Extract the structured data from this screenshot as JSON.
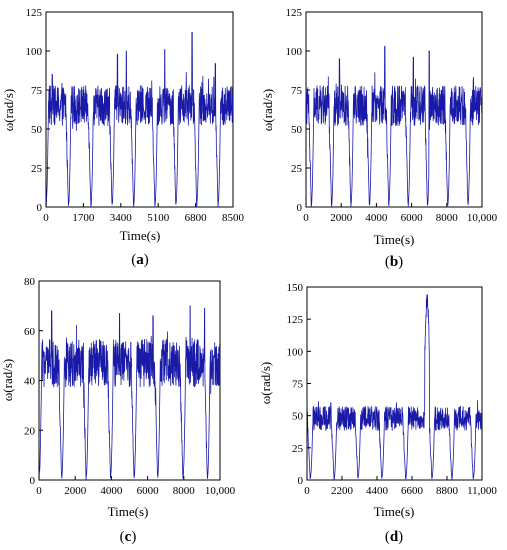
{
  "chart_data": [
    {
      "type": "line",
      "panel_label": "a",
      "xlabel": "Time(s)",
      "ylabel": "ω(rad/s)",
      "xlim": [
        0,
        8500
      ],
      "ylim": [
        0,
        125
      ],
      "xticks": [
        "0",
        "1700",
        "3400",
        "5100",
        "6800",
        "8500"
      ],
      "yticks": [
        "0",
        "25",
        "50",
        "75",
        "100",
        "125"
      ],
      "grid": false,
      "series_color": "#1a1aa8",
      "series": [
        {
          "cycle_starts": [
            0,
            1020,
            2040,
            3000,
            3980,
            4950,
            5900,
            6850,
            7820
          ],
          "cycle_length": 1000,
          "baseline": 65,
          "noise": 8,
          "ramp_up": 120,
          "spikes": [
            [
              5400,
              101
            ],
            [
              6640,
              112
            ],
            [
              3650,
              100
            ]
          ],
          "peaks": [
            [
              280,
              85
            ],
            [
              3250,
              98
            ],
            [
              7700,
              92
            ]
          ]
        }
      ]
    },
    {
      "type": "line",
      "panel_label": "b",
      "xlabel": "Time(s)",
      "ylabel": "ω(rad/s)",
      "xlim": [
        0,
        10000
      ],
      "ylim": [
        0,
        125
      ],
      "xticks": [
        "0",
        "2000",
        "4000",
        "6000",
        "8000",
        "10,000"
      ],
      "yticks": [
        "0",
        "25",
        "50",
        "75",
        "100",
        "125"
      ],
      "grid": false,
      "series_color": "#1a1aa8",
      "series": [
        {
          "cycle_starts": [
            300,
            1450,
            2550,
            3600,
            4700,
            5800,
            6900,
            8050,
            9200
          ],
          "cycle_length": 1100,
          "baseline": 65,
          "noise": 8,
          "ramp_up": 150,
          "spikes": [
            [
              4480,
              103
            ],
            [
              7000,
              100
            ]
          ],
          "peaks": [
            [
              1900,
              95
            ],
            [
              6100,
              96
            ]
          ]
        }
      ]
    },
    {
      "type": "line",
      "panel_label": "c",
      "xlabel": "Time(s)",
      "ylabel": "ω(rad/s)",
      "xlim": [
        0,
        10000
      ],
      "ylim": [
        0,
        80
      ],
      "xticks": [
        "0",
        "2000",
        "4000",
        "6000",
        "8000",
        "10,000"
      ],
      "yticks": [
        "0",
        "20",
        "40",
        "60",
        "80"
      ],
      "grid": false,
      "series_color": "#1a1aa8",
      "series": [
        {
          "cycle_starts": [
            0,
            1250,
            2600,
            3950,
            5250,
            6550,
            7950,
            9300
          ],
          "cycle_length": 1330,
          "baseline": 47,
          "noise": 6,
          "ramp_up": 160,
          "spikes": [
            [
              8350,
              70
            ],
            [
              9150,
              69
            ],
            [
              4450,
              67
            ]
          ],
          "peaks": [
            [
              700,
              68
            ],
            [
              6300,
              66
            ]
          ]
        }
      ]
    },
    {
      "type": "line",
      "panel_label": "d",
      "xlabel": "Time(s)",
      "ylabel": "ω(rad/s)",
      "xlim": [
        0,
        11000
      ],
      "ylim": [
        0,
        150
      ],
      "xticks": [
        "0",
        "2200",
        "4400",
        "6600",
        "8800",
        "11,000"
      ],
      "yticks": [
        "0",
        "25",
        "50",
        "75",
        "100",
        "125",
        "150"
      ],
      "grid": false,
      "series_color": "#1a1aa8",
      "series": [
        {
          "cycle_starts": [
            200,
            1700,
            3200,
            4700,
            6200,
            7850,
            9100,
            10450
          ],
          "cycle_length": 1400,
          "baseline": 48,
          "noise": 6,
          "ramp_up": 180,
          "spikes": [
            [
              1500,
              60
            ]
          ],
          "peaks": [],
          "burst": [
            7400,
            7700,
            140
          ]
        }
      ]
    }
  ]
}
